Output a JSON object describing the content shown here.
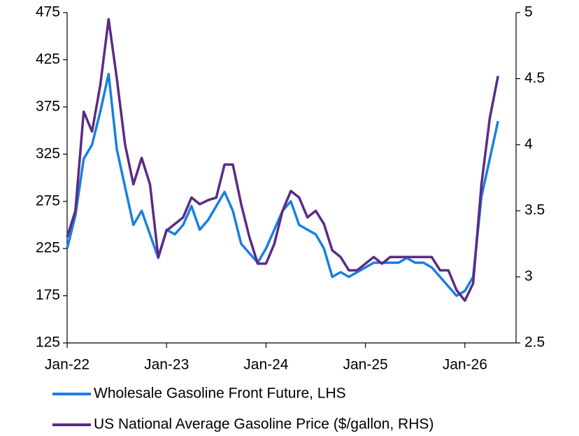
{
  "chart_data": {
    "type": "line",
    "categories": [
      "Jan-22",
      null,
      null,
      null,
      null,
      null,
      null,
      null,
      null,
      null,
      null,
      null,
      "Jan-23",
      null,
      null,
      null,
      null,
      null,
      null,
      null,
      null,
      null,
      null,
      null,
      "Jan-24",
      null,
      null,
      null,
      null,
      null,
      null,
      null,
      null,
      null,
      null,
      null,
      "Jan-25",
      null,
      null,
      null,
      null,
      null,
      null,
      null,
      null,
      null,
      null,
      null,
      "Jan-26",
      null,
      null,
      null,
      null
    ],
    "series": [
      {
        "name": "Wholesale Gasoline Front Future, LHS",
        "color": "#1a7fe0",
        "values": [
          225,
          260,
          320,
          335,
          370,
          410,
          330,
          290,
          250,
          265,
          240,
          215,
          245,
          240,
          250,
          270,
          245,
          255,
          270,
          285,
          265,
          230,
          220,
          210,
          225,
          245,
          265,
          275,
          250,
          245,
          240,
          225,
          195,
          200,
          195,
          200,
          205,
          210,
          210,
          210,
          210,
          215,
          210,
          210,
          205,
          195,
          185,
          175,
          180,
          195,
          280,
          320,
          360
        ]
      },
      {
        "name": "US National Average Gasoline Price ($/gallon, RHS)",
        "color": "#5b2a86",
        "axis": "y2",
        "values": [
          3.3,
          3.5,
          4.25,
          4.1,
          4.45,
          4.95,
          4.5,
          4.0,
          3.7,
          3.9,
          3.7,
          3.15,
          3.35,
          3.4,
          3.45,
          3.6,
          3.55,
          3.58,
          3.6,
          3.85,
          3.85,
          3.55,
          3.3,
          3.1,
          3.1,
          3.25,
          3.5,
          3.65,
          3.6,
          3.45,
          3.5,
          3.4,
          3.2,
          3.15,
          3.05,
          3.05,
          3.1,
          3.15,
          3.1,
          3.15,
          3.15,
          3.15,
          3.15,
          3.15,
          3.15,
          3.05,
          3.05,
          2.9,
          2.82,
          2.95,
          3.7,
          4.2,
          4.52
        ]
      }
    ],
    "ylim": [
      125,
      475
    ],
    "yticks": [
      125,
      175,
      225,
      275,
      325,
      375,
      425,
      475
    ],
    "y2lim": [
      2.5,
      5
    ],
    "y2ticks": [
      2.5,
      3,
      3.5,
      4,
      4.5,
      5
    ]
  }
}
